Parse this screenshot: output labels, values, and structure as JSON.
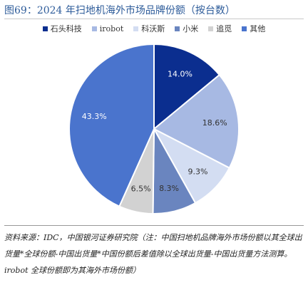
{
  "title": "图69：2024 年扫地机海外市场品牌份额（按台数）",
  "source_note": "资料来源：IDC，中国银河证券研究院（注：中国扫地机品牌海外市场份额以其全球出货量*全球份额-中国出货量*中国份额后差值除以全球出货量-中国出货量方法测算。irobot 全球份额即为其海外市场份额）",
  "chart_data": {
    "type": "pie",
    "title": "图69：2024 年扫地机海外市场品牌份额（按台数）",
    "legend_position": "top",
    "start_angle": "12 o'clock, clockwise",
    "slices": [
      {
        "label": "石头科技",
        "value": 14.0,
        "display": "14.0%",
        "color": "#0B2E8F",
        "text_color": "#ffffff"
      },
      {
        "label": "irobot",
        "value": 18.6,
        "display": "18.6%",
        "color": "#A7B9E3",
        "text_color": "#333333"
      },
      {
        "label": "科沃斯",
        "value": 9.3,
        "display": "9.3%",
        "color": "#D3DDF2",
        "text_color": "#333333"
      },
      {
        "label": "小米",
        "value": 8.3,
        "display": "8.3%",
        "color": "#6A85BF",
        "text_color": "#333333"
      },
      {
        "label": "追觅",
        "value": 6.5,
        "display": "6.5%",
        "color": "#D2D2D2",
        "text_color": "#333333"
      },
      {
        "label": "其他",
        "value": 43.3,
        "display": "43.3%",
        "color": "#4A74CD",
        "text_color": "#ffffff"
      }
    ]
  }
}
